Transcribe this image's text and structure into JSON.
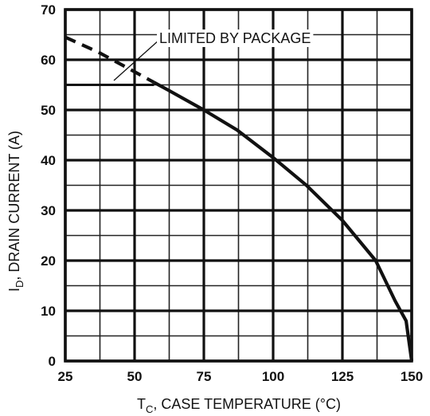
{
  "chart_data": {
    "type": "line",
    "xlabel_main": "T",
    "xlabel_sub": "C",
    "xlabel_rest": ", CASE TEMPERATURE (°C)",
    "ylabel_main": "I",
    "ylabel_sub": "D",
    "ylabel_rest": ", DRAIN CURRENT (A)",
    "xlim": [
      25,
      150
    ],
    "ylim": [
      0,
      70
    ],
    "x_ticks": [
      25,
      50,
      75,
      100,
      125,
      150
    ],
    "y_ticks": [
      0,
      10,
      20,
      30,
      40,
      50,
      60,
      70
    ],
    "minor_x_step": 12.5,
    "minor_y_step": 5,
    "grid": true,
    "annotation": "LIMITED BY PACKAGE",
    "package_limit": 55,
    "series": [
      {
        "style": "dashed",
        "x": [
          25,
          37,
          47,
          57
        ],
        "y": [
          64.5,
          61.5,
          58.5,
          55.5
        ]
      },
      {
        "style": "solid",
        "x": [
          57,
          62,
          75,
          87,
          100,
          112,
          125,
          137,
          144,
          148,
          149,
          150
        ],
        "y": [
          55.5,
          54,
          50,
          46,
          40.5,
          35,
          28,
          20,
          12,
          8,
          4,
          0
        ]
      }
    ]
  }
}
